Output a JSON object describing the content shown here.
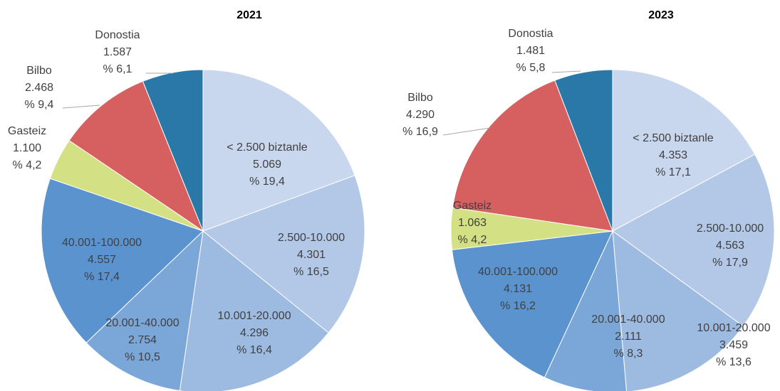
{
  "chart_data": [
    {
      "type": "pie",
      "title": "2021",
      "categories": [
        "< 2.500 biztanle",
        "2.500-10.000",
        "10.001-20.000",
        "20.001-40.000",
        "40.001-100.000",
        "Gasteiz",
        "Bilbo",
        "Donostia"
      ],
      "values": [
        5069,
        4301,
        4296,
        2754,
        4557,
        1100,
        2468,
        1587
      ],
      "value_labels": [
        "5.069",
        "4.301",
        "4.296",
        "2.754",
        "4.557",
        "1.100",
        "2.468",
        "1.587"
      ],
      "percents": [
        19.4,
        16.5,
        16.4,
        10.5,
        17.4,
        4.2,
        9.4,
        6.1
      ],
      "percent_labels": [
        "% 19,4",
        "% 16,5",
        "% 16,4",
        "% 10,5",
        "% 17,4",
        "% 4,2",
        "% 9,4",
        "% 6,1"
      ],
      "colors": [
        "#c9d7ee",
        "#b3c8e6",
        "#9dbae0",
        "#7ba6d8",
        "#5b93cf",
        "#d3e083",
        "#d65f5f",
        "#2a78a8"
      ]
    },
    {
      "type": "pie",
      "title": "2023",
      "categories": [
        "< 2.500 biztanle",
        "2.500-10.000",
        "10.001-20.000",
        "20.001-40.000",
        "40.001-100.000",
        "Gasteiz",
        "Bilbo",
        "Donostia"
      ],
      "values": [
        4353,
        4563,
        3459,
        2111,
        4131,
        1063,
        4290,
        1481
      ],
      "value_labels": [
        "4.353",
        "4.563",
        "3.459",
        "2.111",
        "4.131",
        "1.063",
        "4.290",
        "1.481"
      ],
      "percents": [
        17.1,
        17.9,
        13.6,
        8.3,
        16.2,
        4.2,
        16.9,
        5.8
      ],
      "percent_labels": [
        "% 17,1",
        "% 17,9",
        "% 13,6",
        "% 8,3",
        "% 16,2",
        "% 4,2",
        "% 16,9",
        "% 5,8"
      ],
      "colors": [
        "#c9d7ee",
        "#b3c8e6",
        "#9dbae0",
        "#7ba6d8",
        "#5b93cf",
        "#d3e083",
        "#d65f5f",
        "#2a78a8"
      ]
    }
  ]
}
